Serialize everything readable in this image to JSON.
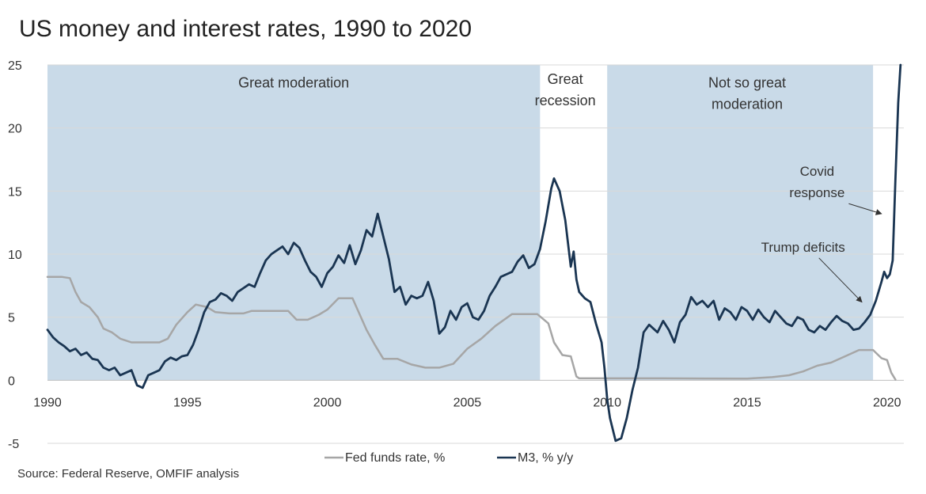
{
  "chart_data": {
    "type": "line",
    "title": "US money and interest rates, 1990 to 2020",
    "source": "Source: Federal Reserve, OMFIF analysis",
    "xlabel": "",
    "ylabel": "",
    "xlim": [
      1990,
      2020.6
    ],
    "ylim": [
      -5,
      25
    ],
    "x_ticks": [
      1990,
      1995,
      2000,
      2005,
      2010,
      2015,
      2020
    ],
    "y_ticks": [
      -5,
      0,
      5,
      10,
      15,
      20,
      25
    ],
    "grid": "horizontal",
    "legend_position": "bottom",
    "shaded_regions": [
      {
        "start": 1990.0,
        "end": 2007.6,
        "label": "Great moderation",
        "color": "#c9dae8"
      },
      {
        "start": 2010.0,
        "end": 2019.5,
        "label": "Not so great moderation",
        "color": "#c9dae8"
      }
    ],
    "region_labels": [
      {
        "text": "Great moderation",
        "lines": [
          "Great moderation"
        ],
        "x": 1998.8,
        "y": 23.2
      },
      {
        "text": "Great recession",
        "lines": [
          "Great",
          "recession"
        ],
        "x": 2008.5,
        "y": 23.5
      },
      {
        "text": "Not so great moderation",
        "lines": [
          "Not so great",
          "moderation"
        ],
        "x": 2015.0,
        "y": 23.2
      }
    ],
    "annotations": [
      {
        "text": "Covid response",
        "lines": [
          "Covid",
          "response"
        ],
        "x": 2017.5,
        "y": 16.2,
        "arrow_to": [
          2019.8,
          13.2
        ]
      },
      {
        "text": "Trump deficits",
        "lines": [
          "Trump deficits"
        ],
        "x": 2017.0,
        "y": 10.2,
        "arrow_to": [
          2019.1,
          6.2
        ]
      }
    ],
    "series": [
      {
        "name": "Fed funds rate, %",
        "color": "#a6a6a6",
        "points": [
          [
            1990.0,
            8.2
          ],
          [
            1990.5,
            8.2
          ],
          [
            1990.8,
            8.1
          ],
          [
            1991.0,
            7.0
          ],
          [
            1991.2,
            6.2
          ],
          [
            1991.5,
            5.8
          ],
          [
            1991.8,
            5.0
          ],
          [
            1992.0,
            4.1
          ],
          [
            1992.3,
            3.8
          ],
          [
            1992.6,
            3.3
          ],
          [
            1993.0,
            3.0
          ],
          [
            1993.5,
            3.0
          ],
          [
            1994.0,
            3.0
          ],
          [
            1994.3,
            3.3
          ],
          [
            1994.6,
            4.4
          ],
          [
            1995.0,
            5.4
          ],
          [
            1995.3,
            6.0
          ],
          [
            1995.7,
            5.8
          ],
          [
            1996.0,
            5.4
          ],
          [
            1996.5,
            5.3
          ],
          [
            1997.0,
            5.3
          ],
          [
            1997.3,
            5.5
          ],
          [
            1998.0,
            5.5
          ],
          [
            1998.6,
            5.5
          ],
          [
            1998.9,
            4.8
          ],
          [
            1999.3,
            4.8
          ],
          [
            1999.7,
            5.2
          ],
          [
            2000.0,
            5.6
          ],
          [
            2000.4,
            6.5
          ],
          [
            2000.9,
            6.5
          ],
          [
            2001.1,
            5.5
          ],
          [
            2001.4,
            4.0
          ],
          [
            2001.7,
            2.8
          ],
          [
            2002.0,
            1.7
          ],
          [
            2002.5,
            1.7
          ],
          [
            2003.0,
            1.25
          ],
          [
            2003.5,
            1.0
          ],
          [
            2004.0,
            1.0
          ],
          [
            2004.5,
            1.3
          ],
          [
            2005.0,
            2.5
          ],
          [
            2005.5,
            3.3
          ],
          [
            2006.0,
            4.3
          ],
          [
            2006.6,
            5.25
          ],
          [
            2007.5,
            5.25
          ],
          [
            2007.9,
            4.5
          ],
          [
            2008.1,
            3.0
          ],
          [
            2008.4,
            2.0
          ],
          [
            2008.7,
            1.9
          ],
          [
            2008.9,
            0.3
          ],
          [
            2009.0,
            0.15
          ],
          [
            2012.0,
            0.15
          ],
          [
            2015.0,
            0.13
          ],
          [
            2015.9,
            0.25
          ],
          [
            2016.5,
            0.4
          ],
          [
            2017.0,
            0.7
          ],
          [
            2017.5,
            1.15
          ],
          [
            2018.0,
            1.4
          ],
          [
            2018.5,
            1.9
          ],
          [
            2019.0,
            2.4
          ],
          [
            2019.5,
            2.4
          ],
          [
            2019.8,
            1.75
          ],
          [
            2020.0,
            1.6
          ],
          [
            2020.15,
            0.6
          ],
          [
            2020.3,
            0.05
          ]
        ]
      },
      {
        "name": "M3, % y/y",
        "color": "#1a3552",
        "points": [
          [
            1990.0,
            4.0
          ],
          [
            1990.2,
            3.4
          ],
          [
            1990.4,
            3.0
          ],
          [
            1990.6,
            2.7
          ],
          [
            1990.8,
            2.3
          ],
          [
            1991.0,
            2.5
          ],
          [
            1991.2,
            2.0
          ],
          [
            1991.4,
            2.2
          ],
          [
            1991.6,
            1.7
          ],
          [
            1991.8,
            1.6
          ],
          [
            1992.0,
            1.0
          ],
          [
            1992.2,
            0.8
          ],
          [
            1992.4,
            1.0
          ],
          [
            1992.6,
            0.4
          ],
          [
            1992.8,
            0.6
          ],
          [
            1993.0,
            0.8
          ],
          [
            1993.2,
            -0.4
          ],
          [
            1993.4,
            -0.6
          ],
          [
            1993.6,
            0.4
          ],
          [
            1993.8,
            0.6
          ],
          [
            1994.0,
            0.8
          ],
          [
            1994.2,
            1.5
          ],
          [
            1994.4,
            1.8
          ],
          [
            1994.6,
            1.6
          ],
          [
            1994.8,
            1.9
          ],
          [
            1995.0,
            2.0
          ],
          [
            1995.2,
            2.8
          ],
          [
            1995.4,
            4.0
          ],
          [
            1995.6,
            5.4
          ],
          [
            1995.8,
            6.2
          ],
          [
            1996.0,
            6.4
          ],
          [
            1996.2,
            6.9
          ],
          [
            1996.4,
            6.7
          ],
          [
            1996.6,
            6.3
          ],
          [
            1996.8,
            7.0
          ],
          [
            1997.0,
            7.3
          ],
          [
            1997.2,
            7.6
          ],
          [
            1997.4,
            7.4
          ],
          [
            1997.6,
            8.5
          ],
          [
            1997.8,
            9.5
          ],
          [
            1998.0,
            10.0
          ],
          [
            1998.2,
            10.3
          ],
          [
            1998.4,
            10.6
          ],
          [
            1998.6,
            10.0
          ],
          [
            1998.8,
            10.9
          ],
          [
            1999.0,
            10.5
          ],
          [
            1999.2,
            9.5
          ],
          [
            1999.4,
            8.6
          ],
          [
            1999.6,
            8.2
          ],
          [
            1999.8,
            7.4
          ],
          [
            2000.0,
            8.5
          ],
          [
            2000.2,
            9.0
          ],
          [
            2000.4,
            9.9
          ],
          [
            2000.6,
            9.3
          ],
          [
            2000.8,
            10.7
          ],
          [
            2001.0,
            9.2
          ],
          [
            2001.2,
            10.3
          ],
          [
            2001.4,
            11.9
          ],
          [
            2001.6,
            11.4
          ],
          [
            2001.8,
            13.2
          ],
          [
            2002.0,
            11.4
          ],
          [
            2002.2,
            9.6
          ],
          [
            2002.4,
            7.0
          ],
          [
            2002.6,
            7.4
          ],
          [
            2002.8,
            6.0
          ],
          [
            2003.0,
            6.7
          ],
          [
            2003.2,
            6.5
          ],
          [
            2003.4,
            6.7
          ],
          [
            2003.6,
            7.8
          ],
          [
            2003.8,
            6.3
          ],
          [
            2004.0,
            3.7
          ],
          [
            2004.2,
            4.2
          ],
          [
            2004.4,
            5.5
          ],
          [
            2004.6,
            4.8
          ],
          [
            2004.8,
            5.8
          ],
          [
            2005.0,
            6.1
          ],
          [
            2005.2,
            5.0
          ],
          [
            2005.4,
            4.8
          ],
          [
            2005.6,
            5.5
          ],
          [
            2005.8,
            6.7
          ],
          [
            2006.0,
            7.4
          ],
          [
            2006.2,
            8.2
          ],
          [
            2006.4,
            8.4
          ],
          [
            2006.6,
            8.6
          ],
          [
            2006.8,
            9.4
          ],
          [
            2007.0,
            9.9
          ],
          [
            2007.2,
            8.9
          ],
          [
            2007.4,
            9.2
          ],
          [
            2007.6,
            10.4
          ],
          [
            2007.8,
            12.6
          ],
          [
            2008.0,
            15.2
          ],
          [
            2008.1,
            16.0
          ],
          [
            2008.3,
            15.0
          ],
          [
            2008.5,
            12.7
          ],
          [
            2008.7,
            9.0
          ],
          [
            2008.8,
            10.2
          ],
          [
            2008.9,
            8.0
          ],
          [
            2009.0,
            7.0
          ],
          [
            2009.2,
            6.5
          ],
          [
            2009.4,
            6.2
          ],
          [
            2009.6,
            4.5
          ],
          [
            2009.8,
            3.0
          ],
          [
            2009.9,
            1.0
          ],
          [
            2010.0,
            -1.5
          ],
          [
            2010.1,
            -3.0
          ],
          [
            2010.3,
            -4.8
          ],
          [
            2010.5,
            -4.6
          ],
          [
            2010.7,
            -3.0
          ],
          [
            2010.9,
            -0.8
          ],
          [
            2011.1,
            1.0
          ],
          [
            2011.3,
            3.8
          ],
          [
            2011.5,
            4.4
          ],
          [
            2011.8,
            3.8
          ],
          [
            2012.0,
            4.7
          ],
          [
            2012.2,
            4.0
          ],
          [
            2012.4,
            3.0
          ],
          [
            2012.6,
            4.6
          ],
          [
            2012.8,
            5.2
          ],
          [
            2013.0,
            6.6
          ],
          [
            2013.2,
            6.0
          ],
          [
            2013.4,
            6.3
          ],
          [
            2013.6,
            5.8
          ],
          [
            2013.8,
            6.3
          ],
          [
            2014.0,
            4.8
          ],
          [
            2014.2,
            5.7
          ],
          [
            2014.4,
            5.4
          ],
          [
            2014.6,
            4.8
          ],
          [
            2014.8,
            5.8
          ],
          [
            2015.0,
            5.5
          ],
          [
            2015.2,
            4.8
          ],
          [
            2015.4,
            5.6
          ],
          [
            2015.6,
            5.0
          ],
          [
            2015.8,
            4.6
          ],
          [
            2016.0,
            5.5
          ],
          [
            2016.2,
            5.0
          ],
          [
            2016.4,
            4.5
          ],
          [
            2016.6,
            4.3
          ],
          [
            2016.8,
            5.0
          ],
          [
            2017.0,
            4.8
          ],
          [
            2017.2,
            4.0
          ],
          [
            2017.4,
            3.8
          ],
          [
            2017.6,
            4.3
          ],
          [
            2017.8,
            4.0
          ],
          [
            2018.0,
            4.6
          ],
          [
            2018.2,
            5.1
          ],
          [
            2018.4,
            4.7
          ],
          [
            2018.6,
            4.5
          ],
          [
            2018.8,
            4.0
          ],
          [
            2019.0,
            4.1
          ],
          [
            2019.2,
            4.6
          ],
          [
            2019.4,
            5.2
          ],
          [
            2019.6,
            6.3
          ],
          [
            2019.8,
            7.8
          ],
          [
            2019.9,
            8.6
          ],
          [
            2020.0,
            8.1
          ],
          [
            2020.1,
            8.4
          ],
          [
            2020.2,
            9.5
          ],
          [
            2020.3,
            16.0
          ],
          [
            2020.4,
            22.0
          ],
          [
            2020.48,
            25.0
          ]
        ]
      }
    ]
  }
}
